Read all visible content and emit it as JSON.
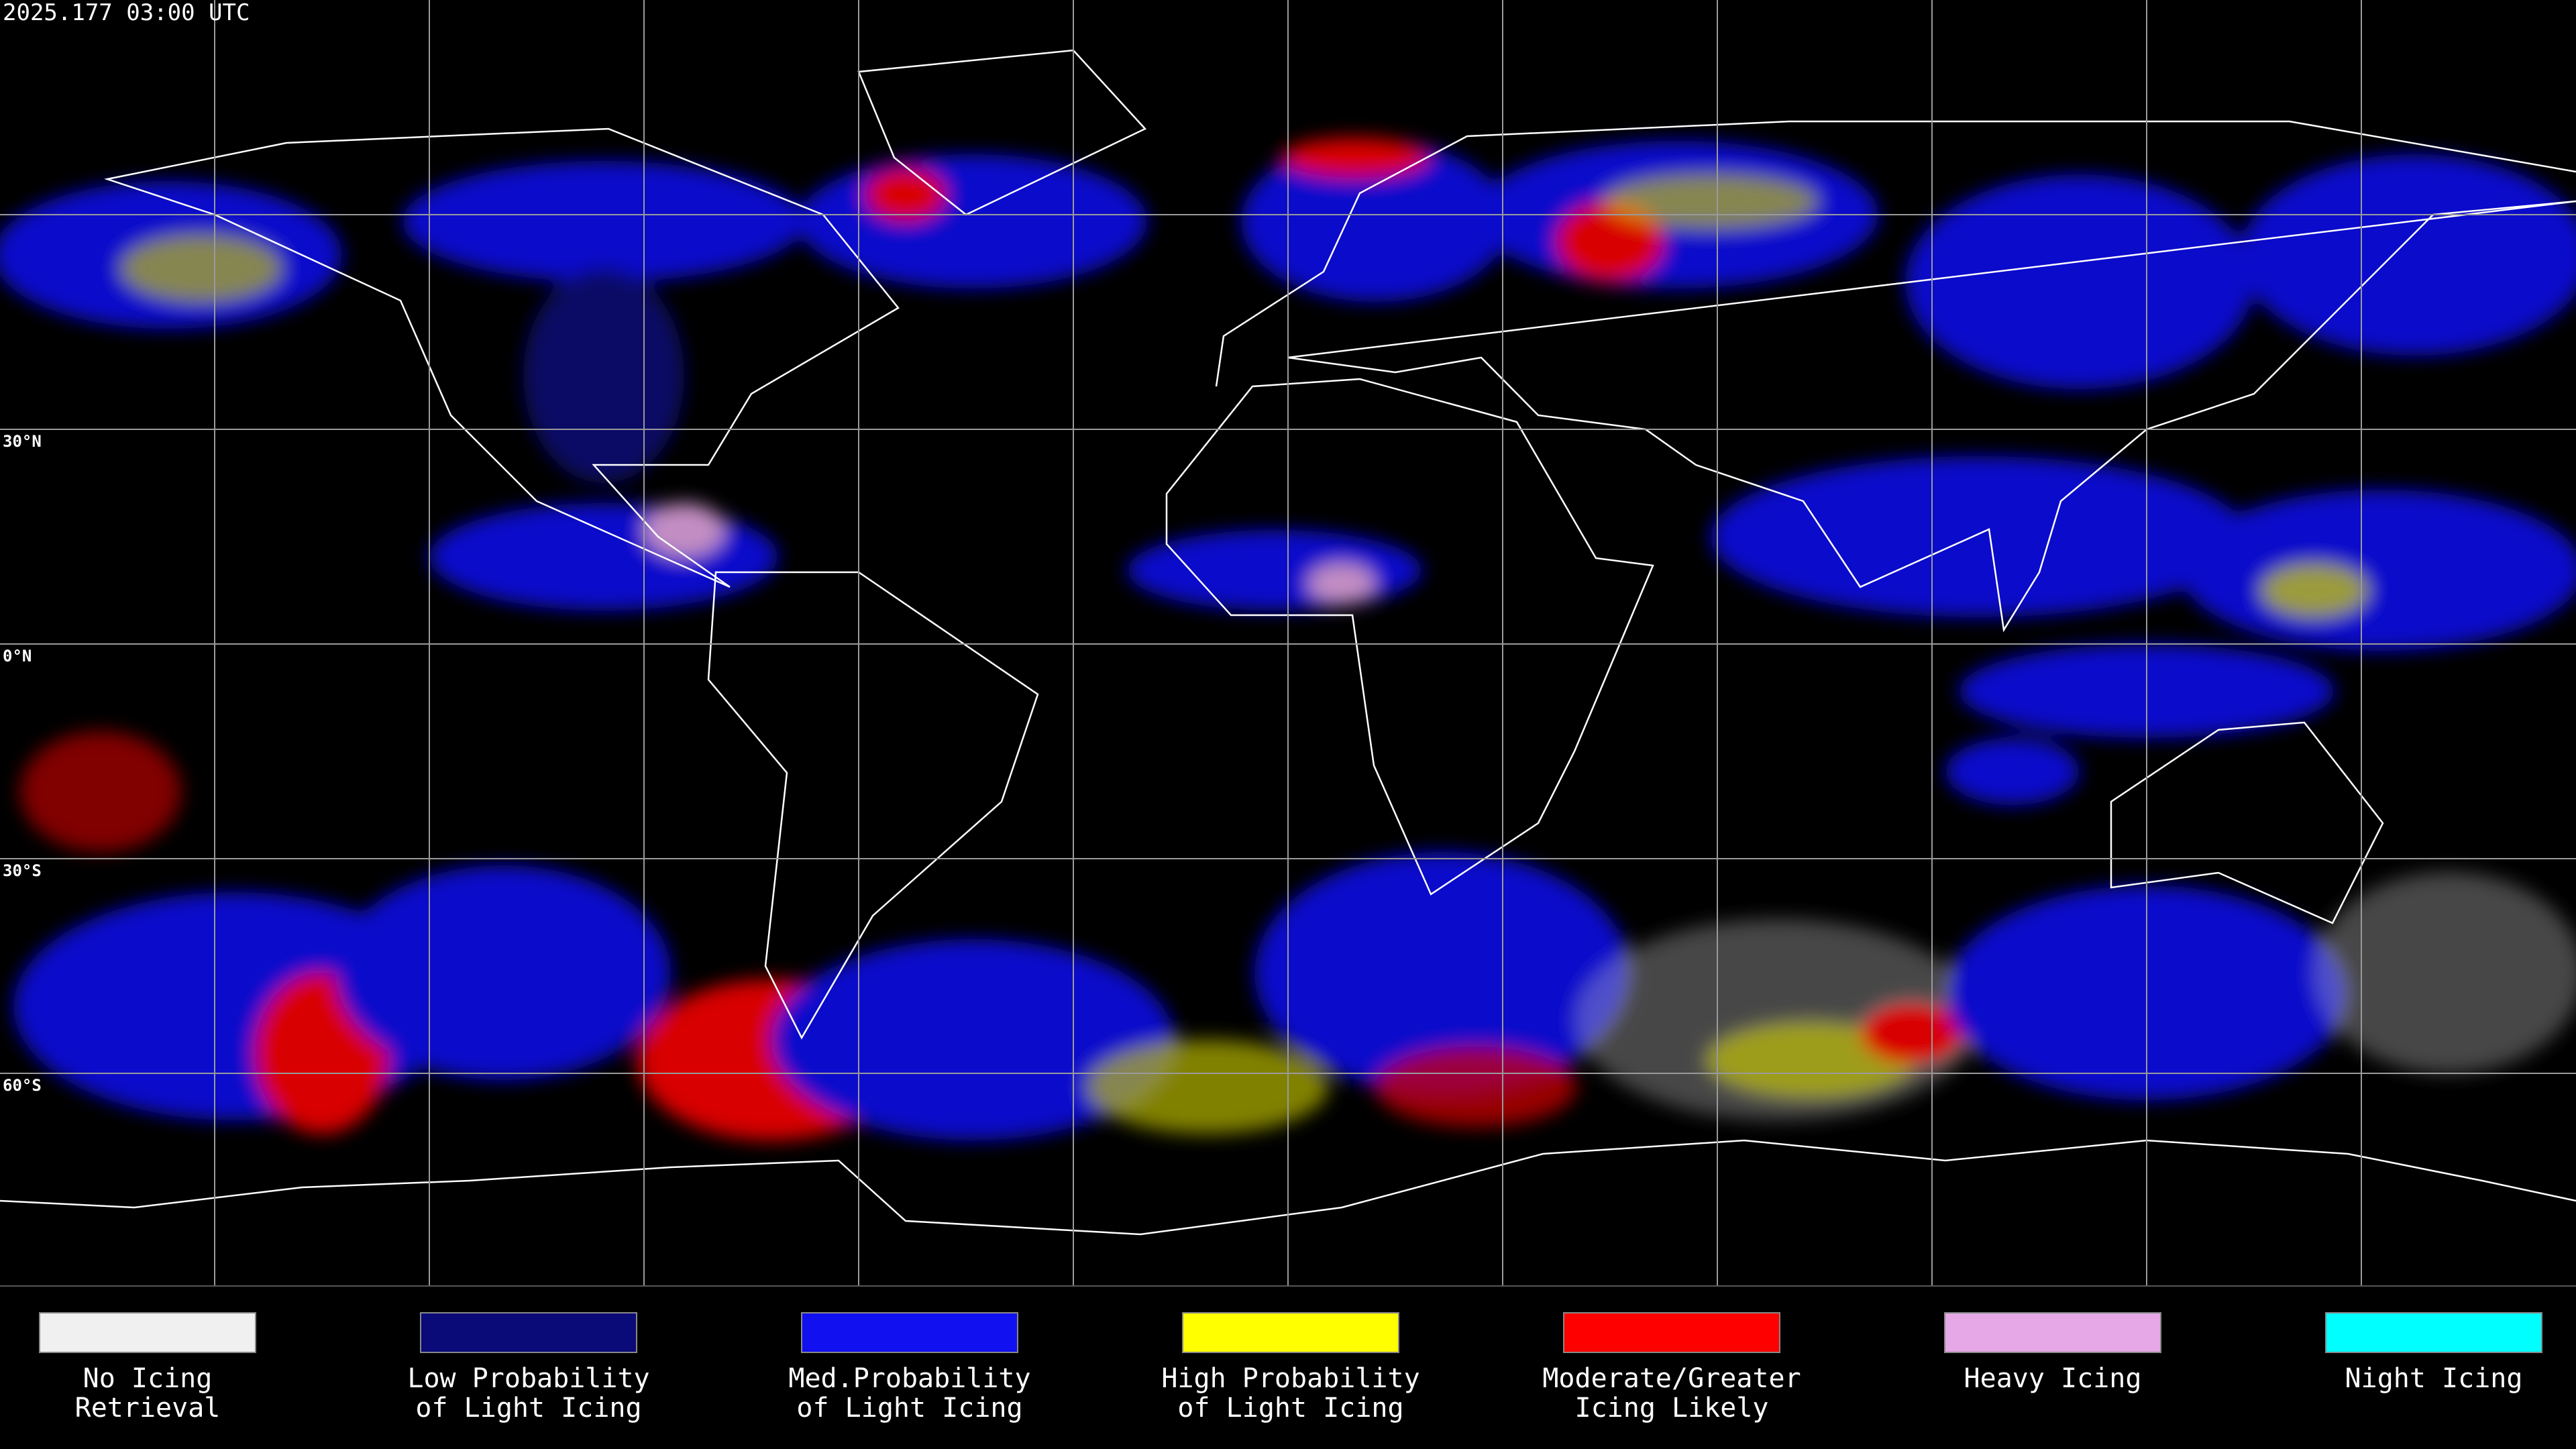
{
  "header": {
    "title": "2025.177 03:00 UTC"
  },
  "grid": {
    "latitude_labels": [
      "30°N",
      "0°N",
      "30°S",
      "60°S"
    ]
  },
  "legend": [
    {
      "label": [
        "No Icing",
        "Retrieval"
      ],
      "color": "#f0f0f0"
    },
    {
      "label": [
        "Low Probability",
        "of Light Icing"
      ],
      "color": "#0a0a78"
    },
    {
      "label": [
        "Med.Probability",
        "of Light Icing"
      ],
      "color": "#1010f0"
    },
    {
      "label": [
        "High Probability",
        "of Light Icing"
      ],
      "color": "#ffff00"
    },
    {
      "label": [
        "Moderate/Greater",
        "Icing Likely"
      ],
      "color": "#ff0000"
    },
    {
      "label": [
        "Heavy Icing"
      ],
      "color": "#e6a8e6"
    },
    {
      "label": [
        "Night Icing"
      ],
      "color": "#00ffff"
    }
  ]
}
